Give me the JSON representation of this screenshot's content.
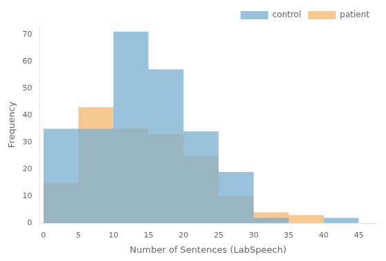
{
  "chart_data": {
    "type": "histogram",
    "bins": [
      0,
      5,
      10,
      15,
      20,
      25,
      30,
      35,
      40,
      45
    ],
    "series": [
      {
        "name": "control",
        "color": "#7aaed0",
        "values": [
          35,
          35,
          71,
          57,
          34,
          19,
          2,
          0,
          2
        ]
      },
      {
        "name": "patient",
        "color": "#f0b86e",
        "values": [
          15,
          43,
          35,
          33,
          25,
          10,
          4,
          3,
          0
        ]
      }
    ],
    "xlabel": "Number of Sentences (LabSpeech)",
    "ylabel": "Frequency",
    "xlim": [
      -0.5,
      47.5
    ],
    "ylim": [
      0,
      73
    ],
    "xticks": [
      0,
      5,
      10,
      15,
      20,
      25,
      30,
      35,
      40,
      45
    ],
    "yticks": [
      0,
      10,
      20,
      30,
      40,
      50,
      60,
      70
    ],
    "grid": false,
    "legend": "upper right"
  }
}
